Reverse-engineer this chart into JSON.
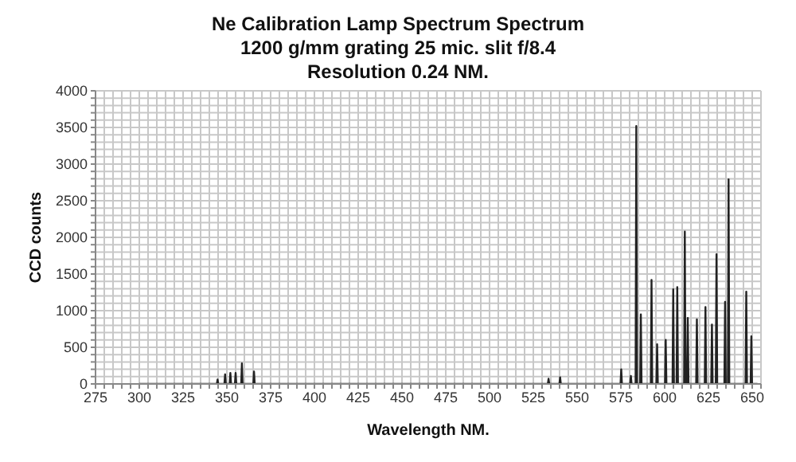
{
  "chart_data": {
    "type": "line",
    "title": "Ne Calibration Lamp Spectrum Spectrum",
    "subtitle": "1200 g/mm grating 25 mic. slit f/8.4",
    "annotations": [
      "Resolution 0.24 NM."
    ],
    "xlabel": "Wavelength NM.",
    "ylabel": "CCD counts",
    "grid": true,
    "x": [
      300,
      344.3,
      344.7,
      345.1,
      348.6,
      349,
      349.4,
      351.6,
      352,
      352.4,
      354.6,
      355,
      355.4,
      358.2,
      358.6,
      359,
      365.1,
      365.5,
      365.9,
      533.3,
      533.7,
      534.1,
      539.9,
      540.3,
      540.7,
      574.8,
      575.2,
      575.6,
      580.3,
      580.7,
      581.1,
      583.4,
      583.8,
      584.2,
      586,
      586.4,
      586.8,
      592.1,
      592.5,
      592.9,
      595.3,
      595.7,
      596.1,
      600.2,
      600.6,
      601,
      604.5,
      604.9,
      605.3,
      606.8,
      607.2,
      607.6,
      611.1,
      611.5,
      611.9,
      612.8,
      613.2,
      613.6,
      618,
      618.4,
      618.8,
      622.9,
      623.3,
      623.7,
      626.6,
      627,
      627.4,
      629.2,
      629.6,
      630,
      634.1,
      634.5,
      634.9,
      636.1,
      636.5,
      636.9,
      646.2,
      646.6,
      647,
      649.1,
      649.5,
      649.9,
      653
    ],
    "series": [
      {
        "color": "#222222",
        "values": [
          0,
          0,
          60,
          0,
          0,
          130,
          0,
          0,
          150,
          0,
          0,
          150,
          0,
          0,
          280,
          0,
          0,
          170,
          0,
          0,
          70,
          0,
          0,
          90,
          0,
          0,
          200,
          0,
          0,
          110,
          0,
          0,
          3520,
          0,
          0,
          950,
          0,
          0,
          1420,
          0,
          0,
          540,
          0,
          0,
          600,
          0,
          0,
          1290,
          0,
          0,
          1320,
          0,
          0,
          2080,
          0,
          0,
          900,
          0,
          0,
          880,
          0,
          0,
          1050,
          0,
          0,
          810,
          0,
          0,
          1770,
          0,
          0,
          1120,
          0,
          0,
          2790,
          0,
          0,
          1260,
          0,
          0,
          650,
          0,
          0
        ]
      }
    ],
    "xlim": [
      275,
      655
    ],
    "xticks": [
      275,
      {
        "value": 280,
        "label": null
      },
      {
        "value": 285,
        "label": null
      },
      {
        "value": 290,
        "label": null
      },
      {
        "value": 295,
        "label": null
      },
      300,
      {
        "value": 305,
        "label": null
      },
      {
        "value": 310,
        "label": null
      },
      {
        "value": 315,
        "label": null
      },
      {
        "value": 320,
        "label": null
      },
      325,
      {
        "value": 330,
        "label": null
      },
      {
        "value": 335,
        "label": null
      },
      {
        "value": 340,
        "label": null
      },
      {
        "value": 345,
        "label": null
      },
      350,
      {
        "value": 355,
        "label": null
      },
      {
        "value": 360,
        "label": null
      },
      {
        "value": 365,
        "label": null
      },
      {
        "value": 370,
        "label": null
      },
      375,
      {
        "value": 380,
        "label": null
      },
      {
        "value": 385,
        "label": null
      },
      {
        "value": 390,
        "label": null
      },
      {
        "value": 395,
        "label": null
      },
      400,
      {
        "value": 405,
        "label": null
      },
      {
        "value": 410,
        "label": null
      },
      {
        "value": 415,
        "label": null
      },
      {
        "value": 420,
        "label": null
      },
      425,
      {
        "value": 430,
        "label": null
      },
      {
        "value": 435,
        "label": null
      },
      {
        "value": 440,
        "label": null
      },
      {
        "value": 445,
        "label": null
      },
      450,
      {
        "value": 455,
        "label": null
      },
      {
        "value": 460,
        "label": null
      },
      {
        "value": 465,
        "label": null
      },
      {
        "value": 470,
        "label": null
      },
      475,
      {
        "value": 480,
        "label": null
      },
      {
        "value": 485,
        "label": null
      },
      {
        "value": 490,
        "label": null
      },
      {
        "value": 495,
        "label": null
      },
      500,
      {
        "value": 505,
        "label": null
      },
      {
        "value": 510,
        "label": null
      },
      {
        "value": 515,
        "label": null
      },
      {
        "value": 520,
        "label": null
      },
      525,
      {
        "value": 530,
        "label": null
      },
      {
        "value": 535,
        "label": null
      },
      {
        "value": 540,
        "label": null
      },
      {
        "value": 545,
        "label": null
      },
      550,
      {
        "value": 555,
        "label": null
      },
      {
        "value": 560,
        "label": null
      },
      {
        "value": 565,
        "label": null
      },
      {
        "value": 570,
        "label": null
      },
      575,
      {
        "value": 580,
        "label": null
      },
      {
        "value": 585,
        "label": null
      },
      {
        "value": 590,
        "label": null
      },
      {
        "value": 595,
        "label": null
      },
      600,
      {
        "value": 605,
        "label": null
      },
      {
        "value": 610,
        "label": null
      },
      {
        "value": 615,
        "label": null
      },
      {
        "value": 620,
        "label": null
      },
      625,
      {
        "value": 630,
        "label": null
      },
      {
        "value": 635,
        "label": null
      },
      {
        "value": 640,
        "label": null
      },
      {
        "value": 645,
        "label": null
      },
      650,
      {
        "value": 655,
        "label": null
      }
    ],
    "ylim": [
      0,
      4000
    ],
    "yticks": [
      0,
      {
        "value": 100,
        "label": null
      },
      {
        "value": 200,
        "label": null
      },
      {
        "value": 300,
        "label": null
      },
      {
        "value": 400,
        "label": null
      },
      500,
      {
        "value": 600,
        "label": null
      },
      {
        "value": 700,
        "label": null
      },
      {
        "value": 800,
        "label": null
      },
      {
        "value": 900,
        "label": null
      },
      1000,
      {
        "value": 1100,
        "label": null
      },
      {
        "value": 1200,
        "label": null
      },
      {
        "value": 1300,
        "label": null
      },
      {
        "value": 1400,
        "label": null
      },
      1500,
      {
        "value": 1600,
        "label": null
      },
      {
        "value": 1700,
        "label": null
      },
      {
        "value": 1800,
        "label": null
      },
      {
        "value": 1900,
        "label": null
      },
      2000,
      {
        "value": 2100,
        "label": null
      },
      {
        "value": 2200,
        "label": null
      },
      {
        "value": 2300,
        "label": null
      },
      {
        "value": 2400,
        "label": null
      },
      2500,
      {
        "value": 2600,
        "label": null
      },
      {
        "value": 2700,
        "label": null
      },
      {
        "value": 2800,
        "label": null
      },
      {
        "value": 2900,
        "label": null
      },
      3000,
      {
        "value": 3100,
        "label": null
      },
      {
        "value": 3200,
        "label": null
      },
      {
        "value": 3300,
        "label": null
      },
      {
        "value": 3400,
        "label": null
      },
      3500,
      {
        "value": 3600,
        "label": null
      },
      {
        "value": 3700,
        "label": null
      },
      {
        "value": 3800,
        "label": null
      },
      {
        "value": 3900,
        "label": null
      },
      4000
    ]
  }
}
